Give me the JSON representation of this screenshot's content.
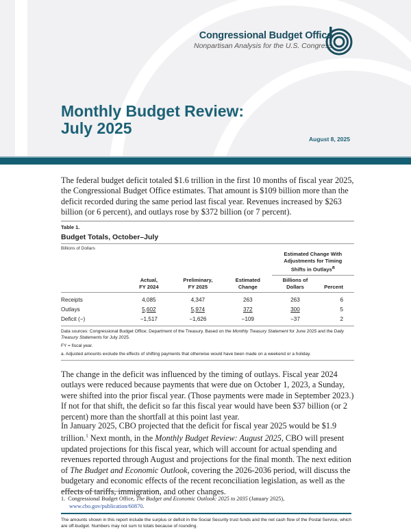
{
  "header": {
    "org_name": "Congressional Budget Office",
    "tagline": "Nonpartisan Analysis for the U.S. Congress",
    "title_line1": "Monthly Budget Review:",
    "title_line2": "July 2025",
    "date": "August 8, 2025",
    "accent": "#135e73"
  },
  "intro": "The federal budget deficit totaled $1.6 trillion in the first 10 months of fiscal year 2025, the Congressional Budget Office estimates. That amount is $109 billion more than the deficit recorded during the same period last fiscal year. Revenues increased by $263 billion (or 6 percent), and outlays rose by $372 billion (or 7 percent).",
  "table": {
    "number": "Table 1.",
    "title": "Budget Totals, October–July",
    "units": "Billions of Dollars",
    "group_header": "Estimated Change With Adjustments for Timing Shifts in Outlays",
    "group_marker": "a",
    "columns": [
      "",
      "Actual, FY 2024",
      "Preliminary, FY 2025",
      "Estimated Change",
      "Billions of Dollars",
      "Percent"
    ],
    "rows": [
      {
        "label": "Receipts",
        "values": [
          "4,085",
          "4,347",
          "263",
          "263",
          "6"
        ]
      },
      {
        "label": "Outlays",
        "values": [
          "5,602",
          "5,974",
          "372",
          "300",
          "5"
        ]
      },
      {
        "label": "Deficit (−)",
        "values": [
          "−1,517",
          "−1,626",
          "−109",
          "−37",
          "2"
        ]
      }
    ],
    "source_prefix": "Data sources: Congressional Budget Office; Department of the Treasury. Based on the ",
    "source_i1": "Monthly Treasury Statement",
    "source_mid": " for June 2025 and the ",
    "source_i2": "Daily Treasury Statements",
    "source_suffix": " for July 2025.",
    "note_fy": "FY = fiscal year.",
    "note_a": "a.   Adjusted amounts exclude the effects of shifting payments that otherwise would have been made on a weekend or a holiday."
  },
  "para2": "The change in the deficit was influenced by the timing of outlays. Fiscal year 2024 outlays were reduced because payments that were due on October 1, 2023, a Sunday, were shifted into the prior fiscal year. (Those payments were made in September 2023.) If not for that shift, the deficit so far this fiscal year would have been $37 billion (or 2 percent) more than the shortfall at this point last year.",
  "para3": {
    "a": "In January 2025, CBO projected that the deficit for fiscal year 2025 would be $1.9 trillion.",
    "fnref": "1",
    "b": " Next month, in the ",
    "i1": "Monthly Budget Review: August 2025,",
    "c": " CBO will present updated projections for this fiscal year, which will account for actual spending and revenues reported through August and projections for the final month. The next edition of ",
    "i2": "The Budget and Economic Outlook,",
    "d": " covering the 2026-2036 period, will discuss the budgetary and economic effects of the recent reconciliation legislation, as well as the effects of tariffs, immigration, and other changes."
  },
  "footnote": {
    "num": "1.",
    "a": "Congressional Budget Office, ",
    "i": "The Budget and Economic Outlook: 2025 to 2035",
    "b": " (January 2025),",
    "link": "www.cbo.gov/publication/60870",
    "end": "."
  },
  "bottom_note": "The amounts shown in this report include the surplus or deficit in the Social Security trust funds and the net cash flow of the Postal Service, which are off-budget. Numbers may not sum to totals because of rounding."
}
